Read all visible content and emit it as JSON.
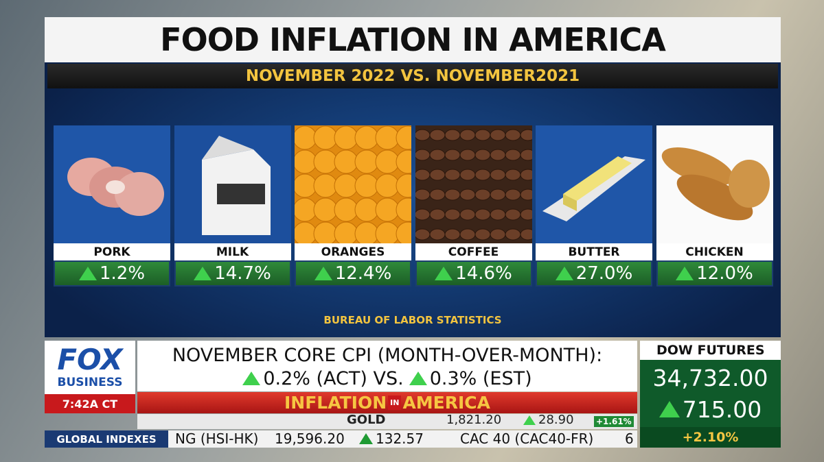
{
  "title": "FOOD INFLATION IN AMERICA",
  "subtitle": "NOVEMBER 2022 VS. NOVEMBER2021",
  "items": [
    {
      "name": "PORK",
      "change": "1.2%"
    },
    {
      "name": "MILK",
      "change": "14.7%"
    },
    {
      "name": "ORANGES",
      "change": "12.4%"
    },
    {
      "name": "COFFEE",
      "change": "14.6%"
    },
    {
      "name": "BUTTER",
      "change": "27.0%"
    },
    {
      "name": "CHICKEN",
      "change": "12.0%"
    }
  ],
  "source": "BUREAU OF LABOR STATISTICS",
  "logo": {
    "top": "FOX",
    "bottom": "BUSINESS"
  },
  "time": "7:42A CT",
  "headline": {
    "line1": "NOVEMBER CORE CPI (MONTH-OVER-MONTH):",
    "actual": "0.2% (ACT) VS.",
    "estimate": "0.3% (EST)"
  },
  "banner": {
    "left": "INFLATION",
    "middle": "IN",
    "right": "AMERICA"
  },
  "dow": {
    "label": "DOW FUTURES",
    "value": "34,732.00",
    "change": "715.00",
    "percent": "+2.10%"
  },
  "ticker_top": {
    "name": "GOLD",
    "price": "1,821.20",
    "change": "28.90",
    "percent": "+1.61%"
  },
  "ticker_bottom": {
    "section": "GLOBAL INDEXES",
    "name": "NG (HSI-HK)",
    "price": "19,596.20",
    "change": "132.57",
    "next": "CAC 40 (CAC40-FR)",
    "next_price": "6"
  }
}
